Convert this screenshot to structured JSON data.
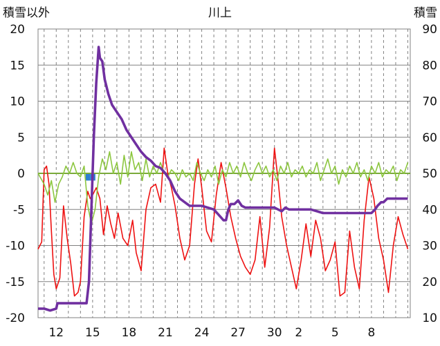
{
  "chart_data": {
    "type": "line",
    "title": "川上",
    "ylabel_left": "積雪以外",
    "ylabel_right": "積雪",
    "ylim_left": [
      -20,
      20
    ],
    "ylim_right": [
      10,
      90
    ],
    "yticks_left": [
      "20",
      "15",
      "10",
      "5",
      "0",
      "-5",
      "-10",
      "-15",
      "-20"
    ],
    "yticks_right": [
      "90",
      "80",
      "70",
      "60",
      "50",
      "40",
      "30",
      "20",
      "10"
    ],
    "xticks": [
      "12",
      "15",
      "18",
      "21",
      "24",
      "27",
      "30",
      "2",
      "5",
      "8"
    ],
    "x_range_days": [
      10.5,
      41.2
    ],
    "xtick_days": [
      12,
      15,
      18,
      21,
      24,
      27,
      30,
      32,
      35,
      38
    ],
    "grid": "vertical dashed gridlines at each day, horizontal solid gridlines at each major y tick",
    "colors": {
      "temperature": "#ee1111",
      "wind": "#8cc63f",
      "snow_depth": "#7030a0",
      "precipitation": "#2e7fd0",
      "grid": "#808080",
      "zero_line": "#7aaa3a"
    },
    "series": [
      {
        "axis": "left",
        "color": "#ee1111",
        "points": [
          [
            10.5,
            -10.5
          ],
          [
            10.8,
            -9.5
          ],
          [
            11.0,
            0.5
          ],
          [
            11.2,
            1.0
          ],
          [
            11.4,
            -1.5
          ],
          [
            11.6,
            -8.0
          ],
          [
            11.8,
            -14.0
          ],
          [
            12.0,
            -16.0
          ],
          [
            12.3,
            -14.5
          ],
          [
            12.6,
            -4.5
          ],
          [
            12.9,
            -9.0
          ],
          [
            13.2,
            -12.5
          ],
          [
            13.5,
            -17.0
          ],
          [
            13.8,
            -16.5
          ],
          [
            14.0,
            -15.0
          ],
          [
            14.3,
            -6.0
          ],
          [
            14.6,
            -2.5
          ],
          [
            14.8,
            -3.5
          ],
          [
            15.0,
            -3.0
          ],
          [
            15.3,
            -2.0
          ],
          [
            15.6,
            -3.5
          ],
          [
            15.9,
            -8.5
          ],
          [
            16.2,
            -4.5
          ],
          [
            16.5,
            -7.0
          ],
          [
            16.8,
            -9.0
          ],
          [
            17.1,
            -5.5
          ],
          [
            17.5,
            -9.0
          ],
          [
            17.9,
            -10.0
          ],
          [
            18.3,
            -6.5
          ],
          [
            18.6,
            -11.0
          ],
          [
            19.0,
            -13.5
          ],
          [
            19.4,
            -5.0
          ],
          [
            19.8,
            -2.0
          ],
          [
            20.2,
            -1.5
          ],
          [
            20.6,
            -4.0
          ],
          [
            20.9,
            3.5
          ],
          [
            21.2,
            0.0
          ],
          [
            21.5,
            -2.0
          ],
          [
            21.8,
            -4.5
          ],
          [
            22.2,
            -9.0
          ],
          [
            22.6,
            -12.0
          ],
          [
            23.0,
            -10.0
          ],
          [
            23.4,
            -1.5
          ],
          [
            23.7,
            2.0
          ],
          [
            24.0,
            -2.0
          ],
          [
            24.4,
            -8.0
          ],
          [
            24.8,
            -9.5
          ],
          [
            25.2,
            -3.0
          ],
          [
            25.6,
            1.5
          ],
          [
            26.0,
            -2.0
          ],
          [
            26.4,
            -6.0
          ],
          [
            26.8,
            -9.0
          ],
          [
            27.2,
            -11.5
          ],
          [
            27.6,
            -13.0
          ],
          [
            28.0,
            -14.0
          ],
          [
            28.4,
            -12.0
          ],
          [
            28.8,
            -6.0
          ],
          [
            29.2,
            -13.0
          ],
          [
            29.6,
            -7.5
          ],
          [
            30.0,
            3.5
          ],
          [
            30.3,
            -1.0
          ],
          [
            30.6,
            -6.0
          ],
          [
            31.0,
            -10.0
          ],
          [
            31.4,
            -13.0
          ],
          [
            31.8,
            -16.0
          ],
          [
            32.2,
            -12.0
          ],
          [
            32.6,
            -7.0
          ],
          [
            33.0,
            -11.5
          ],
          [
            33.4,
            -6.5
          ],
          [
            33.8,
            -9.0
          ],
          [
            34.2,
            -13.5
          ],
          [
            34.6,
            -12.0
          ],
          [
            35.0,
            -9.5
          ],
          [
            35.4,
            -17.0
          ],
          [
            35.8,
            -16.5
          ],
          [
            36.2,
            -8.0
          ],
          [
            36.6,
            -13.0
          ],
          [
            37.0,
            -16.0
          ],
          [
            37.4,
            -6.5
          ],
          [
            37.8,
            -0.5
          ],
          [
            38.2,
            -3.5
          ],
          [
            38.6,
            -9.0
          ],
          [
            39.0,
            -12.0
          ],
          [
            39.4,
            -16.5
          ],
          [
            39.8,
            -10.0
          ],
          [
            40.2,
            -6.0
          ],
          [
            40.6,
            -8.5
          ],
          [
            41.0,
            -10.5
          ]
        ]
      },
      {
        "axis": "left",
        "color": "#8cc63f",
        "points": [
          [
            10.5,
            0.0
          ],
          [
            11.0,
            -1.5
          ],
          [
            11.3,
            -3.0
          ],
          [
            11.6,
            -1.0
          ],
          [
            11.9,
            -4.0
          ],
          [
            12.2,
            -1.5
          ],
          [
            12.5,
            -0.5
          ],
          [
            12.8,
            1.0
          ],
          [
            13.1,
            0.0
          ],
          [
            13.4,
            1.5
          ],
          [
            13.7,
            0.0
          ],
          [
            14.0,
            -0.5
          ],
          [
            14.3,
            1.0
          ],
          [
            14.6,
            -4.5
          ],
          [
            14.9,
            -7.0
          ],
          [
            15.2,
            -5.0
          ],
          [
            15.5,
            -0.5
          ],
          [
            15.8,
            2.0
          ],
          [
            16.1,
            0.5
          ],
          [
            16.4,
            3.0
          ],
          [
            16.7,
            0.0
          ],
          [
            17.0,
            1.5
          ],
          [
            17.3,
            -1.5
          ],
          [
            17.6,
            2.5
          ],
          [
            17.9,
            -0.5
          ],
          [
            18.2,
            3.0
          ],
          [
            18.5,
            0.5
          ],
          [
            18.8,
            1.5
          ],
          [
            19.1,
            -1.0
          ],
          [
            19.4,
            2.0
          ],
          [
            19.7,
            -0.5
          ],
          [
            20.0,
            1.0
          ],
          [
            20.3,
            0.0
          ],
          [
            20.6,
            1.5
          ],
          [
            20.9,
            0.0
          ],
          [
            21.2,
            -0.5
          ],
          [
            21.5,
            0.5
          ],
          [
            21.8,
            0.0
          ],
          [
            22.1,
            -1.0
          ],
          [
            22.4,
            0.5
          ],
          [
            22.7,
            -0.5
          ],
          [
            23.0,
            0.0
          ],
          [
            23.3,
            -1.0
          ],
          [
            23.6,
            1.5
          ],
          [
            23.9,
            0.0
          ],
          [
            24.2,
            -1.0
          ],
          [
            24.5,
            0.5
          ],
          [
            24.8,
            -0.5
          ],
          [
            25.1,
            1.0
          ],
          [
            25.4,
            -1.5
          ],
          [
            25.7,
            0.5
          ],
          [
            26.0,
            -0.5
          ],
          [
            26.3,
            1.5
          ],
          [
            26.6,
            0.0
          ],
          [
            26.9,
            1.0
          ],
          [
            27.2,
            -0.5
          ],
          [
            27.5,
            1.5
          ],
          [
            27.8,
            0.0
          ],
          [
            28.1,
            -1.0
          ],
          [
            28.4,
            0.5
          ],
          [
            28.7,
            1.5
          ],
          [
            29.0,
            0.0
          ],
          [
            29.3,
            1.0
          ],
          [
            29.6,
            -0.5
          ],
          [
            29.9,
            0.5
          ],
          [
            30.2,
            -1.0
          ],
          [
            30.5,
            1.0
          ],
          [
            30.8,
            0.0
          ],
          [
            31.1,
            1.5
          ],
          [
            31.4,
            -0.5
          ],
          [
            31.7,
            0.5
          ],
          [
            32.0,
            0.0
          ],
          [
            32.3,
            1.0
          ],
          [
            32.6,
            -0.5
          ],
          [
            32.9,
            0.5
          ],
          [
            33.2,
            0.0
          ],
          [
            33.5,
            1.5
          ],
          [
            33.8,
            -1.0
          ],
          [
            34.1,
            0.5
          ],
          [
            34.4,
            2.0
          ],
          [
            34.7,
            0.0
          ],
          [
            35.0,
            1.0
          ],
          [
            35.3,
            -1.5
          ],
          [
            35.6,
            0.5
          ],
          [
            35.9,
            -0.5
          ],
          [
            36.2,
            1.0
          ],
          [
            36.5,
            0.0
          ],
          [
            36.8,
            1.5
          ],
          [
            37.1,
            -0.5
          ],
          [
            37.4,
            0.5
          ],
          [
            37.7,
            -1.0
          ],
          [
            38.0,
            1.0
          ],
          [
            38.3,
            0.0
          ],
          [
            38.6,
            1.5
          ],
          [
            38.9,
            -0.5
          ],
          [
            39.2,
            0.5
          ],
          [
            39.5,
            0.0
          ],
          [
            39.8,
            1.0
          ],
          [
            40.1,
            -1.0
          ],
          [
            40.4,
            0.5
          ],
          [
            40.7,
            0.0
          ],
          [
            41.0,
            1.5
          ]
        ]
      },
      {
        "axis": "right",
        "color": "#7030a0",
        "points": [
          [
            10.5,
            12.5
          ],
          [
            11.0,
            12.5
          ],
          [
            11.5,
            12.0
          ],
          [
            12.0,
            12.5
          ],
          [
            12.1,
            14.0
          ],
          [
            12.5,
            14.0
          ],
          [
            13.0,
            14.0
          ],
          [
            14.0,
            14.0
          ],
          [
            14.5,
            14.0
          ],
          [
            14.7,
            20.0
          ],
          [
            14.9,
            40.0
          ],
          [
            15.1,
            60.0
          ],
          [
            15.3,
            75.0
          ],
          [
            15.5,
            85.0
          ],
          [
            15.6,
            82.0
          ],
          [
            15.8,
            81.0
          ],
          [
            16.0,
            76.0
          ],
          [
            16.3,
            72.0
          ],
          [
            16.6,
            69.0
          ],
          [
            17.0,
            67.0
          ],
          [
            17.4,
            65.0
          ],
          [
            17.8,
            62.0
          ],
          [
            18.2,
            60.0
          ],
          [
            18.6,
            58.0
          ],
          [
            19.0,
            56.0
          ],
          [
            19.4,
            54.5
          ],
          [
            19.8,
            53.5
          ],
          [
            20.2,
            52.0
          ],
          [
            20.6,
            51.5
          ],
          [
            21.0,
            50.0
          ],
          [
            21.4,
            48.0
          ],
          [
            21.8,
            45.0
          ],
          [
            22.2,
            43.0
          ],
          [
            22.6,
            42.0
          ],
          [
            23.0,
            41.0
          ],
          [
            23.5,
            41.0
          ],
          [
            24.0,
            41.0
          ],
          [
            24.5,
            40.5
          ],
          [
            25.0,
            40.0
          ],
          [
            25.4,
            38.5
          ],
          [
            25.8,
            37.0
          ],
          [
            26.0,
            37.0
          ],
          [
            26.2,
            40.0
          ],
          [
            26.4,
            41.5
          ],
          [
            26.7,
            41.5
          ],
          [
            27.0,
            42.5
          ],
          [
            27.3,
            41.0
          ],
          [
            27.6,
            40.5
          ],
          [
            28.0,
            40.5
          ],
          [
            28.5,
            40.5
          ],
          [
            29.0,
            40.5
          ],
          [
            29.5,
            40.5
          ],
          [
            30.0,
            40.5
          ],
          [
            30.3,
            40.0
          ],
          [
            30.6,
            39.5
          ],
          [
            30.9,
            40.5
          ],
          [
            31.2,
            40.0
          ],
          [
            31.5,
            40.0
          ],
          [
            32.0,
            40.0
          ],
          [
            32.5,
            40.0
          ],
          [
            33.0,
            40.0
          ],
          [
            33.5,
            39.5
          ],
          [
            34.0,
            39.0
          ],
          [
            34.5,
            39.0
          ],
          [
            35.0,
            39.0
          ],
          [
            35.5,
            39.0
          ],
          [
            36.0,
            39.0
          ],
          [
            36.5,
            39.0
          ],
          [
            37.0,
            39.0
          ],
          [
            37.5,
            39.0
          ],
          [
            38.0,
            39.0
          ],
          [
            38.3,
            40.0
          ],
          [
            38.5,
            41.0
          ],
          [
            38.8,
            42.0
          ],
          [
            39.0,
            42.0
          ],
          [
            39.3,
            43.0
          ],
          [
            39.6,
            43.0
          ],
          [
            40.0,
            43.0
          ],
          [
            40.5,
            43.0
          ],
          [
            41.0,
            43.0
          ]
        ]
      }
    ],
    "precipitation_bars": [
      {
        "day": 14.6,
        "value": -1.0
      },
      {
        "day": 15.0,
        "value": -1.0
      }
    ]
  }
}
